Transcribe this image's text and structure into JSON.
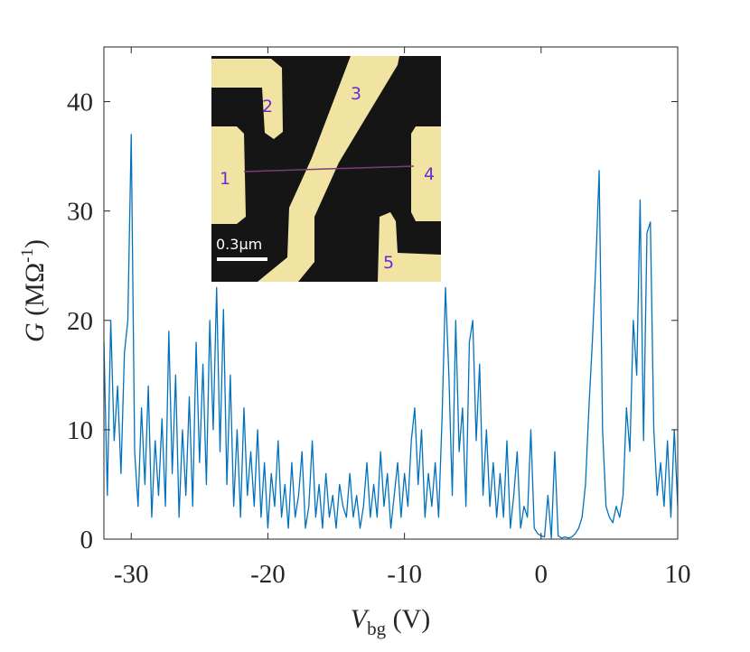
{
  "chart_data": {
    "type": "line",
    "xlabel": {
      "italic": "V",
      "sub": "bg",
      "text": " (V)"
    },
    "ylabel": {
      "italic": "G",
      "text": " (MΩ",
      "sup": "-1",
      "end": ")"
    },
    "color": "#0072bd",
    "xlim": [
      -32,
      10
    ],
    "ylim": [
      0,
      45
    ],
    "xticks": [
      -30,
      -20,
      -10,
      0,
      10
    ],
    "yticks": [
      0,
      10,
      20,
      30,
      40
    ],
    "grid": false,
    "inset_labels": [
      "1",
      "2",
      "3",
      "4",
      "5"
    ],
    "scale_bar": "0.3μm",
    "x": [
      -32,
      -31.75,
      -31.5,
      -31.25,
      -31,
      -30.75,
      -30.5,
      -30.25,
      -30,
      -29.75,
      -29.5,
      -29.25,
      -29,
      -28.75,
      -28.5,
      -28.25,
      -28,
      -27.75,
      -27.5,
      -27.25,
      -27,
      -26.75,
      -26.5,
      -26.25,
      -26,
      -25.75,
      -25.5,
      -25.25,
      -25,
      -24.75,
      -24.5,
      -24.25,
      -24,
      -23.75,
      -23.5,
      -23.25,
      -23,
      -22.75,
      -22.5,
      -22.25,
      -22,
      -21.75,
      -21.5,
      -21.25,
      -21,
      -20.75,
      -20.5,
      -20.25,
      -20,
      -19.75,
      -19.5,
      -19.25,
      -19,
      -18.75,
      -18.5,
      -18.25,
      -18,
      -17.75,
      -17.5,
      -17.25,
      -17,
      -16.75,
      -16.5,
      -16.25,
      -16,
      -15.75,
      -15.5,
      -15.25,
      -15,
      -14.75,
      -14.5,
      -14.25,
      -14,
      -13.75,
      -13.5,
      -13.25,
      -13,
      -12.75,
      -12.5,
      -12.25,
      -12,
      -11.75,
      -11.5,
      -11.25,
      -11,
      -10.75,
      -10.5,
      -10.25,
      -10,
      -9.75,
      -9.5,
      -9.25,
      -9,
      -8.75,
      -8.5,
      -8.25,
      -8,
      -7.75,
      -7.5,
      -7.25,
      -7,
      -6.75,
      -6.5,
      -6.25,
      -6,
      -5.75,
      -5.5,
      -5.25,
      -5,
      -4.75,
      -4.5,
      -4.25,
      -4,
      -3.75,
      -3.5,
      -3.25,
      -3,
      -2.75,
      -2.5,
      -2.25,
      -2,
      -1.75,
      -1.5,
      -1.25,
      -1,
      -0.75,
      -0.5,
      -0.25,
      0,
      0.25,
      0.5,
      0.75,
      1,
      1.25,
      1.5,
      1.75,
      2,
      2.25,
      2.5,
      2.75,
      3,
      3.25,
      3.5,
      3.75,
      4,
      4.25,
      4.5,
      4.75,
      5,
      5.25,
      5.5,
      5.75,
      6,
      6.25,
      6.5,
      6.75,
      7,
      7.25,
      7.5,
      7.75,
      8,
      8.25,
      8.5,
      8.75,
      9,
      9.25,
      9.5,
      9.75,
      10
    ],
    "values": [
      18,
      4,
      20,
      9,
      14,
      6,
      17,
      20,
      37,
      8,
      3,
      12,
      5,
      14,
      2,
      9,
      4,
      11,
      3,
      19,
      6,
      15,
      2,
      10,
      4,
      13,
      3,
      18,
      7,
      16,
      5,
      20,
      10,
      23,
      8,
      21,
      5,
      15,
      3,
      10,
      2,
      12,
      4,
      8,
      3,
      10,
      2,
      7,
      1,
      6,
      3,
      9,
      2,
      5,
      1,
      7,
      2,
      4,
      8,
      1,
      3,
      9,
      2,
      5,
      1,
      6,
      2,
      4,
      1,
      5,
      3,
      2,
      6,
      2,
      4,
      1,
      3,
      7,
      2,
      5,
      2,
      8,
      3,
      6,
      1,
      4,
      7,
      2,
      6,
      3,
      9,
      12,
      5,
      10,
      2,
      6,
      3,
      7,
      2,
      11,
      23,
      15,
      4,
      20,
      8,
      12,
      3,
      18,
      20,
      9,
      16,
      4,
      10,
      3,
      7,
      2,
      6,
      2,
      9,
      1,
      4,
      8,
      1,
      3,
      2,
      10,
      1,
      0.5,
      0.3,
      0.2,
      4,
      0.1,
      8,
      0.3,
      0.1,
      0.2,
      0.1,
      0.2,
      0.5,
      1,
      2,
      5,
      12,
      18,
      25,
      33.7,
      10,
      3,
      2,
      1.5,
      3,
      2,
      4,
      12,
      8,
      20,
      15,
      31,
      9,
      28,
      29,
      10,
      4,
      7,
      3,
      9,
      2,
      10,
      3
    ]
  }
}
